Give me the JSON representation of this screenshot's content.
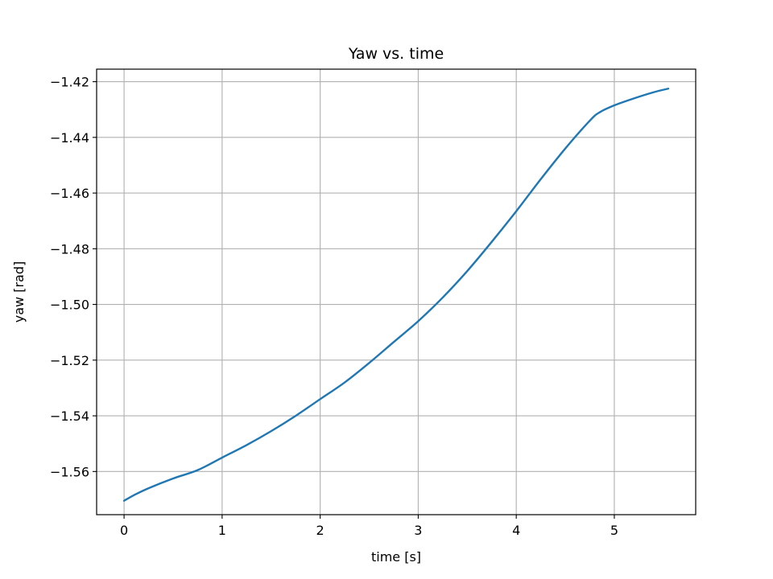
{
  "chart_data": {
    "type": "line",
    "title": "Yaw vs. time",
    "xlabel": "time [s]",
    "ylabel": "yaw [rad]",
    "xlim": [
      -0.28,
      5.83
    ],
    "ylim": [
      -1.5755,
      -1.4155
    ],
    "grid": true,
    "xticks": [
      0,
      1,
      2,
      3,
      4,
      5
    ],
    "xtick_labels": [
      "0",
      "1",
      "2",
      "3",
      "4",
      "5"
    ],
    "yticks": [
      -1.56,
      -1.54,
      -1.52,
      -1.5,
      -1.48,
      -1.46,
      -1.44,
      -1.42
    ],
    "ytick_labels": [
      "−1.56",
      "−1.54",
      "−1.52",
      "−1.50",
      "−1.48",
      "−1.46",
      "−1.44",
      "−1.42"
    ],
    "series": [
      {
        "color": "#1f77b4",
        "x": [
          0,
          0.1,
          0.25,
          0.5,
          0.75,
          1.0,
          1.25,
          1.5,
          1.75,
          2.0,
          2.25,
          2.5,
          2.75,
          3.0,
          3.25,
          3.5,
          3.75,
          4.0,
          4.25,
          4.5,
          4.75,
          4.85,
          5.0,
          5.2,
          5.4,
          5.55
        ],
        "y": [
          -1.5705,
          -1.5685,
          -1.566,
          -1.5625,
          -1.5595,
          -1.555,
          -1.5505,
          -1.5455,
          -1.54,
          -1.534,
          -1.528,
          -1.521,
          -1.5135,
          -1.506,
          -1.4975,
          -1.488,
          -1.4775,
          -1.4665,
          -1.455,
          -1.444,
          -1.434,
          -1.431,
          -1.4285,
          -1.426,
          -1.4238,
          -1.4225
        ]
      }
    ]
  }
}
